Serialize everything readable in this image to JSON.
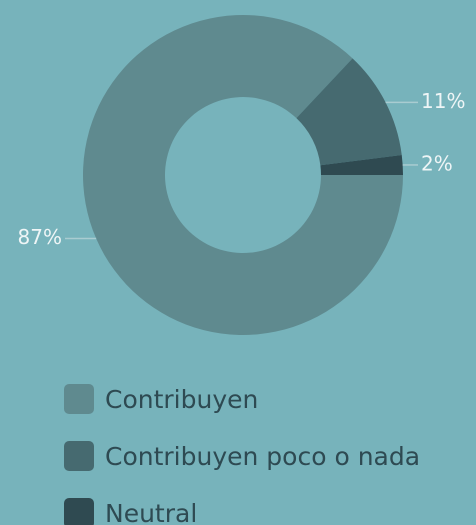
{
  "chart_data": {
    "type": "pie",
    "categories": [
      "Contribuyen",
      "Contribuyen poco o nada",
      "Neutral"
    ],
    "values": [
      87,
      11,
      2
    ],
    "value_labels": [
      "87%",
      "11%",
      "2%"
    ],
    "colors": [
      "#5f8a8f",
      "#466a70",
      "#2f4a51"
    ]
  }
}
